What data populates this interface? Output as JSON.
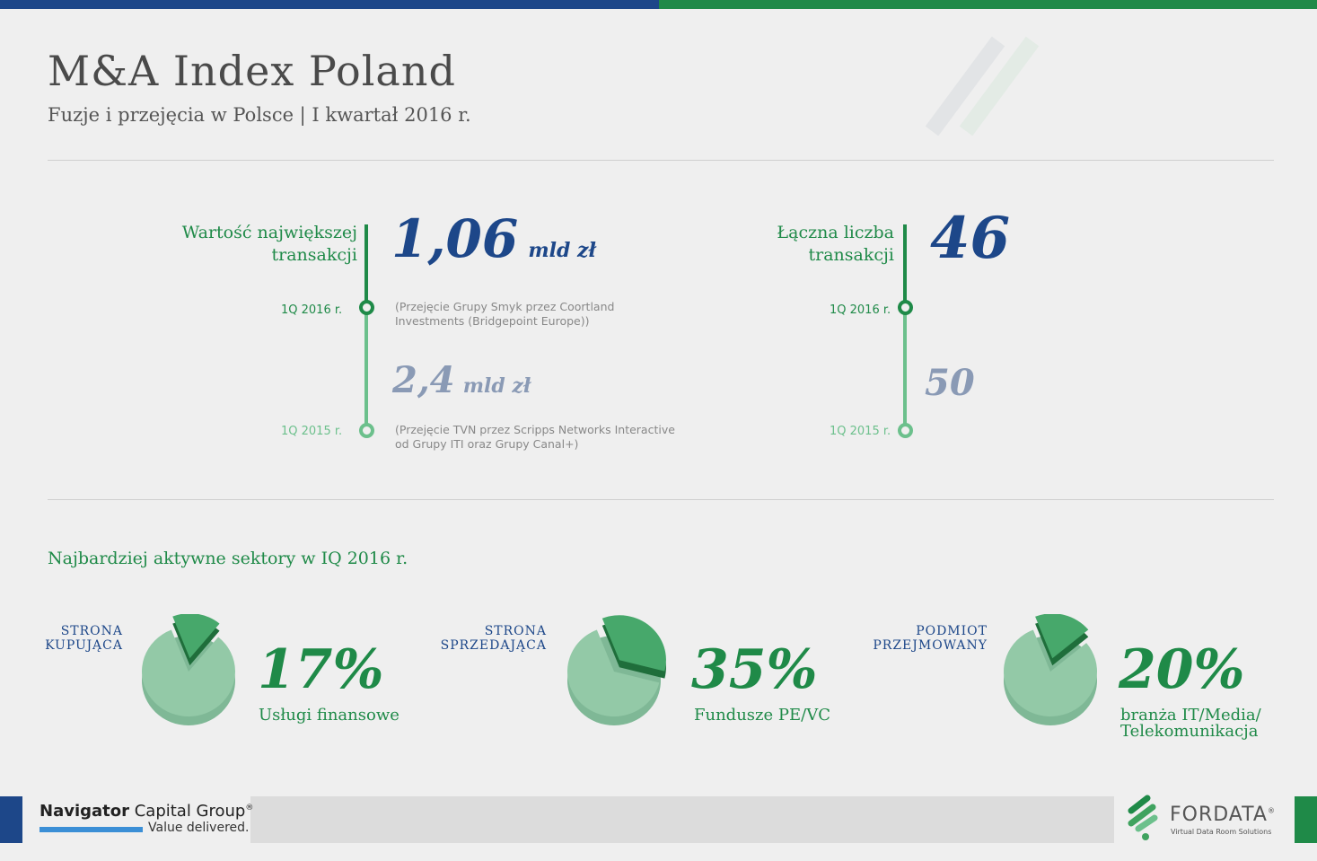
{
  "header": {
    "title": "M&A Index Poland",
    "subtitle": "Fuzje i przejęcia w Polsce | I kwartał 2016 r."
  },
  "largest_deal": {
    "label_line1": "Wartość największej",
    "label_line2": "transakcji",
    "current": {
      "value": "1,06",
      "unit": "mld zł",
      "period": "1Q 2016 r.",
      "note_line1": "(Przejęcie Grupy Smyk przez Coortland",
      "note_line2": "Investments (Bridgepoint Europe))"
    },
    "previous": {
      "value": "2,4",
      "unit": "mld zł",
      "period": "1Q 2015 r.",
      "note_line1": "(Przejęcie TVN przez Scripps Networks Interactive",
      "note_line2": "od Grupy ITI oraz Grupy Canal+)"
    }
  },
  "total_deals": {
    "label_line1": "Łączna liczba",
    "label_line2": "transakcji",
    "current": {
      "value": "46",
      "period": "1Q 2016 r."
    },
    "previous": {
      "value": "50",
      "period": "1Q 2015 r."
    }
  },
  "sectors": {
    "title": "Najbardziej aktywne sektory w IQ 2016 r.",
    "items": [
      {
        "head_line1": "STRONA",
        "head_line2": "KUPUJĄCA",
        "percent": "17%",
        "share": 0.17,
        "label_line1": "Usługi finansowe",
        "label_line2": ""
      },
      {
        "head_line1": "STRONA",
        "head_line2": "SPRZEDAJĄCA",
        "percent": "35%",
        "share": 0.35,
        "label_line1": "Fundusze PE/VC",
        "label_line2": ""
      },
      {
        "head_line1": "PODMIOT",
        "head_line2": "PRZEJMOWANY",
        "percent": "20%",
        "share": 0.2,
        "label_line1": "branża IT/Media/",
        "label_line2": "Telekomunikacja"
      }
    ]
  },
  "footer": {
    "ncg_name_bold": "Navigator",
    "ncg_name_rest": " Capital Group",
    "ncg_reg": "®",
    "ncg_tagline": "Value delivered.",
    "fordata_name": "FORDATA",
    "fordata_reg": "®",
    "fordata_tagline": "Virtual Data Room Solutions"
  },
  "colors": {
    "blue": "#1d4789",
    "green": "#1f8a48",
    "light_green": "#6cc08c",
    "grey_value": "#8a9ab5"
  }
}
